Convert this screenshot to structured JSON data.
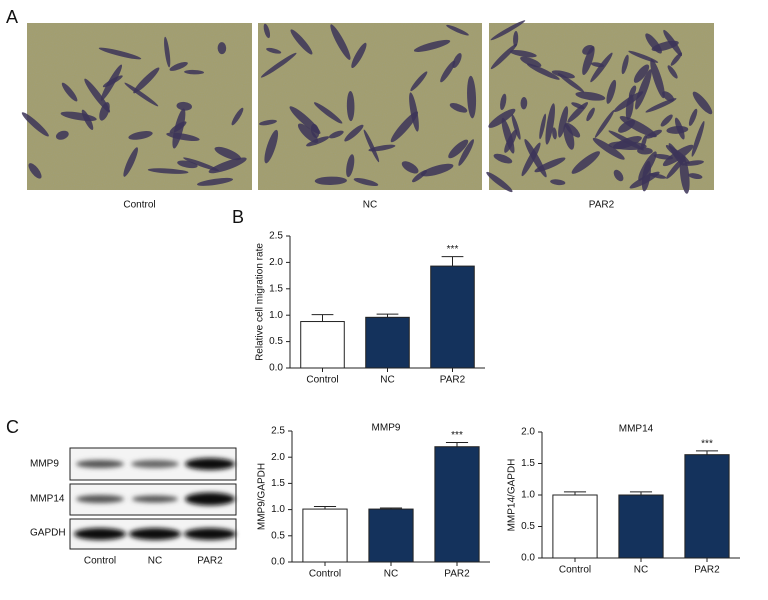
{
  "panels": {
    "a": {
      "label": "A",
      "images": [
        "Control",
        "NC",
        "PAR2"
      ]
    },
    "b": {
      "label": "B"
    },
    "c": {
      "label": "C",
      "blot_rows": [
        "MMP9",
        "MMP14",
        "GAPDH"
      ],
      "blot_lanes": [
        "Control",
        "NC",
        "PAR2"
      ]
    }
  },
  "chart_data": [
    {
      "type": "bar",
      "ylabel": "Relative cell migration rate",
      "categories": [
        "Control",
        "NC",
        "PAR2"
      ],
      "values": [
        0.88,
        0.96,
        1.93
      ],
      "errors": [
        0.13,
        0.06,
        0.18
      ],
      "colors": [
        "#ffffff",
        "#14325c",
        "#14325c"
      ],
      "significance": [
        null,
        null,
        "***"
      ],
      "ylim": [
        0,
        2.5
      ],
      "yticks": [
        {
          "value": 0,
          "label": "0.0"
        },
        0.5,
        {
          "value": 1,
          "label": "1.0"
        },
        1.5,
        {
          "value": 2,
          "label": "2.0"
        },
        2.5
      ]
    },
    {
      "type": "bar",
      "title": "MMP9",
      "ylabel": "MMP9/GAPDH",
      "categories": [
        "Control",
        "NC",
        "PAR2"
      ],
      "values": [
        1.01,
        1.01,
        2.2
      ],
      "errors": [
        0.05,
        0.02,
        0.08
      ],
      "colors": [
        "#ffffff",
        "#14325c",
        "#14325c"
      ],
      "significance": [
        null,
        null,
        "***"
      ],
      "ylim": [
        0,
        2.5
      ],
      "yticks": [
        {
          "value": 0,
          "label": "0.0"
        },
        0.5,
        {
          "value": 1,
          "label": "1.0"
        },
        1.5,
        {
          "value": 2,
          "label": "2.0"
        },
        2.5
      ]
    },
    {
      "type": "bar",
      "title": "MMP14",
      "ylabel": "MMP14/GAPDH",
      "categories": [
        "Control",
        "NC",
        "PAR2"
      ],
      "values": [
        1.0,
        1.0,
        1.64
      ],
      "errors": [
        0.05,
        0.05,
        0.06
      ],
      "colors": [
        "#ffffff",
        "#14325c",
        "#14325c"
      ],
      "significance": [
        null,
        null,
        "***"
      ],
      "ylim": [
        0,
        2
      ],
      "yticks": [
        {
          "value": 0,
          "label": "0.0"
        },
        0.5,
        {
          "value": 1,
          "label": "1.0"
        },
        1.5,
        {
          "value": 2,
          "label": "2.0"
        }
      ]
    }
  ]
}
